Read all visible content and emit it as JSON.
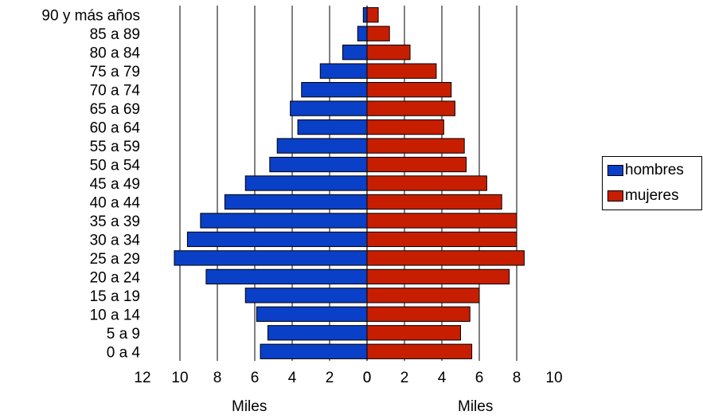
{
  "chart_data": {
    "type": "bar",
    "orientation": "horizontal",
    "subtype": "population-pyramid",
    "categories": [
      "90 y más años",
      "85 a 89",
      "80 a 84",
      "75 a 79",
      "70 a 74",
      "65 a 69",
      "60 a 64",
      "55 a 59",
      "50 a 54",
      "45 a 49",
      "40 a 44",
      "35 a 39",
      "30 a 34",
      "25 a 29",
      "20 a 24",
      "15 a 19",
      "10 a 14",
      "5 a 9",
      "0 a 4"
    ],
    "series": [
      {
        "name": "hombres",
        "color": "#0a40c8",
        "side": "left",
        "values": [
          0.2,
          0.5,
          1.3,
          2.5,
          3.5,
          4.1,
          3.7,
          4.8,
          5.2,
          6.5,
          7.6,
          8.9,
          9.6,
          10.3,
          8.6,
          6.5,
          5.9,
          5.3,
          5.7
        ]
      },
      {
        "name": "mujeres",
        "color": "#c81e00",
        "side": "right",
        "values": [
          0.6,
          1.2,
          2.3,
          3.7,
          4.5,
          4.7,
          4.1,
          5.2,
          5.3,
          6.4,
          7.2,
          8.0,
          8.0,
          8.4,
          7.6,
          6.0,
          5.5,
          5.0,
          5.6
        ]
      }
    ],
    "x_left": {
      "ticks": [
        12,
        10,
        8,
        6,
        4,
        2,
        0
      ],
      "label": "Miles",
      "lim": [
        0,
        12
      ]
    },
    "x_right": {
      "ticks": [
        0,
        2,
        4,
        6,
        8,
        10
      ],
      "label": "Miles",
      "lim": [
        0,
        10
      ]
    },
    "grid": true,
    "legend_position": "right"
  }
}
